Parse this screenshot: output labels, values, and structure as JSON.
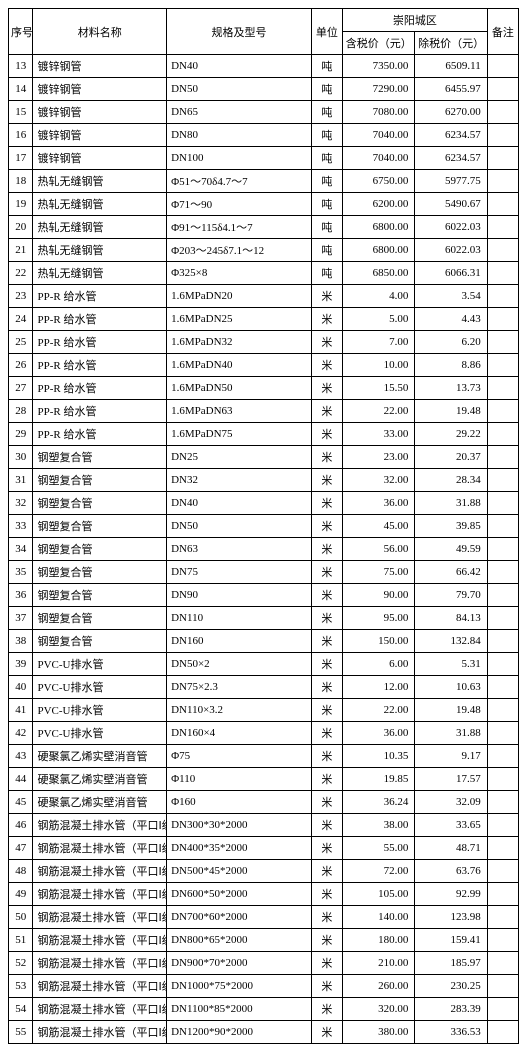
{
  "header": {
    "seq": "序号",
    "name": "材料名称",
    "spec": "规格及型号",
    "unit": "单位",
    "region": "崇阳城区",
    "price_incl": "含税价（元）",
    "price_excl": "除税价（元）",
    "remark": "备注"
  },
  "rows": [
    {
      "seq": "13",
      "name": "镀锌钢管",
      "spec": "DN40",
      "unit": "吨",
      "p1": "7350.00",
      "p2": "6509.11",
      "rm": ""
    },
    {
      "seq": "14",
      "name": "镀锌钢管",
      "spec": "DN50",
      "unit": "吨",
      "p1": "7290.00",
      "p2": "6455.97",
      "rm": ""
    },
    {
      "seq": "15",
      "name": "镀锌钢管",
      "spec": "DN65",
      "unit": "吨",
      "p1": "7080.00",
      "p2": "6270.00",
      "rm": ""
    },
    {
      "seq": "16",
      "name": "镀锌钢管",
      "spec": "DN80",
      "unit": "吨",
      "p1": "7040.00",
      "p2": "6234.57",
      "rm": ""
    },
    {
      "seq": "17",
      "name": "镀锌钢管",
      "spec": "DN100",
      "unit": "吨",
      "p1": "7040.00",
      "p2": "6234.57",
      "rm": ""
    },
    {
      "seq": "18",
      "name": "热轧无缝钢管",
      "spec": "Φ51～70δ4.7～7",
      "unit": "吨",
      "p1": "6750.00",
      "p2": "5977.75",
      "rm": ""
    },
    {
      "seq": "19",
      "name": "热轧无缝钢管",
      "spec": "Φ71～90",
      "unit": "吨",
      "p1": "6200.00",
      "p2": "5490.67",
      "rm": ""
    },
    {
      "seq": "20",
      "name": "热轧无缝钢管",
      "spec": "Φ91～115δ4.1～7",
      "unit": "吨",
      "p1": "6800.00",
      "p2": "6022.03",
      "rm": ""
    },
    {
      "seq": "21",
      "name": "热轧无缝钢管",
      "spec": "Φ203～245δ7.1～12",
      "unit": "吨",
      "p1": "6800.00",
      "p2": "6022.03",
      "rm": ""
    },
    {
      "seq": "22",
      "name": "热轧无缝钢管",
      "spec": "Φ325×8",
      "unit": "吨",
      "p1": "6850.00",
      "p2": "6066.31",
      "rm": ""
    },
    {
      "seq": "23",
      "name": "PP-R 给水管",
      "spec": "1.6MPaDN20",
      "unit": "米",
      "p1": "4.00",
      "p2": "3.54",
      "rm": ""
    },
    {
      "seq": "24",
      "name": "PP-R 给水管",
      "spec": "1.6MPaDN25",
      "unit": "米",
      "p1": "5.00",
      "p2": "4.43",
      "rm": ""
    },
    {
      "seq": "25",
      "name": "PP-R 给水管",
      "spec": "1.6MPaDN32",
      "unit": "米",
      "p1": "7.00",
      "p2": "6.20",
      "rm": ""
    },
    {
      "seq": "26",
      "name": "PP-R 给水管",
      "spec": "1.6MPaDN40",
      "unit": "米",
      "p1": "10.00",
      "p2": "8.86",
      "rm": ""
    },
    {
      "seq": "27",
      "name": "PP-R 给水管",
      "spec": "1.6MPaDN50",
      "unit": "米",
      "p1": "15.50",
      "p2": "13.73",
      "rm": ""
    },
    {
      "seq": "28",
      "name": "PP-R 给水管",
      "spec": "1.6MPaDN63",
      "unit": "米",
      "p1": "22.00",
      "p2": "19.48",
      "rm": ""
    },
    {
      "seq": "29",
      "name": "PP-R 给水管",
      "spec": "1.6MPaDN75",
      "unit": "米",
      "p1": "33.00",
      "p2": "29.22",
      "rm": ""
    },
    {
      "seq": "30",
      "name": "钢塑复合管",
      "spec": "DN25",
      "unit": "米",
      "p1": "23.00",
      "p2": "20.37",
      "rm": ""
    },
    {
      "seq": "31",
      "name": "钢塑复合管",
      "spec": "DN32",
      "unit": "米",
      "p1": "32.00",
      "p2": "28.34",
      "rm": ""
    },
    {
      "seq": "32",
      "name": "钢塑复合管",
      "spec": "DN40",
      "unit": "米",
      "p1": "36.00",
      "p2": "31.88",
      "rm": ""
    },
    {
      "seq": "33",
      "name": "钢塑复合管",
      "spec": "DN50",
      "unit": "米",
      "p1": "45.00",
      "p2": "39.85",
      "rm": ""
    },
    {
      "seq": "34",
      "name": "钢塑复合管",
      "spec": "DN63",
      "unit": "米",
      "p1": "56.00",
      "p2": "49.59",
      "rm": ""
    },
    {
      "seq": "35",
      "name": "钢塑复合管",
      "spec": "DN75",
      "unit": "米",
      "p1": "75.00",
      "p2": "66.42",
      "rm": ""
    },
    {
      "seq": "36",
      "name": "钢塑复合管",
      "spec": "DN90",
      "unit": "米",
      "p1": "90.00",
      "p2": "79.70",
      "rm": ""
    },
    {
      "seq": "37",
      "name": "钢塑复合管",
      "spec": "DN110",
      "unit": "米",
      "p1": "95.00",
      "p2": "84.13",
      "rm": ""
    },
    {
      "seq": "38",
      "name": "钢塑复合管",
      "spec": "DN160",
      "unit": "米",
      "p1": "150.00",
      "p2": "132.84",
      "rm": ""
    },
    {
      "seq": "39",
      "name": "PVC-U排水管",
      "spec": "DN50×2",
      "unit": "米",
      "p1": "6.00",
      "p2": "5.31",
      "rm": ""
    },
    {
      "seq": "40",
      "name": "PVC-U排水管",
      "spec": "DN75×2.3",
      "unit": "米",
      "p1": "12.00",
      "p2": "10.63",
      "rm": ""
    },
    {
      "seq": "41",
      "name": "PVC-U排水管",
      "spec": "DN110×3.2",
      "unit": "米",
      "p1": "22.00",
      "p2": "19.48",
      "rm": ""
    },
    {
      "seq": "42",
      "name": "PVC-U排水管",
      "spec": "DN160×4",
      "unit": "米",
      "p1": "36.00",
      "p2": "31.88",
      "rm": ""
    },
    {
      "seq": "43",
      "name": "硬聚氯乙烯实壁消音管",
      "spec": "Φ75",
      "unit": "米",
      "p1": "10.35",
      "p2": "9.17",
      "rm": ""
    },
    {
      "seq": "44",
      "name": "硬聚氯乙烯实壁消音管",
      "spec": "Φ110",
      "unit": "米",
      "p1": "19.85",
      "p2": "17.57",
      "rm": ""
    },
    {
      "seq": "45",
      "name": "硬聚氯乙烯实壁消音管",
      "spec": "Φ160",
      "unit": "米",
      "p1": "36.24",
      "p2": "32.09",
      "rm": ""
    },
    {
      "seq": "46",
      "name": "钢筋混凝土排水管（平口Ⅰ级）",
      "spec": "DN300*30*2000",
      "unit": "米",
      "p1": "38.00",
      "p2": "33.65",
      "rm": ""
    },
    {
      "seq": "47",
      "name": "钢筋混凝土排水管（平口Ⅰ级）",
      "spec": "DN400*35*2000",
      "unit": "米",
      "p1": "55.00",
      "p2": "48.71",
      "rm": ""
    },
    {
      "seq": "48",
      "name": "钢筋混凝土排水管（平口Ⅰ级）",
      "spec": "DN500*45*2000",
      "unit": "米",
      "p1": "72.00",
      "p2": "63.76",
      "rm": ""
    },
    {
      "seq": "49",
      "name": "钢筋混凝土排水管（平口Ⅰ级）",
      "spec": "DN600*50*2000",
      "unit": "米",
      "p1": "105.00",
      "p2": "92.99",
      "rm": ""
    },
    {
      "seq": "50",
      "name": "钢筋混凝土排水管（平口Ⅰ级）",
      "spec": "DN700*60*2000",
      "unit": "米",
      "p1": "140.00",
      "p2": "123.98",
      "rm": ""
    },
    {
      "seq": "51",
      "name": "钢筋混凝土排水管（平口Ⅰ级）",
      "spec": "DN800*65*2000",
      "unit": "米",
      "p1": "180.00",
      "p2": "159.41",
      "rm": ""
    },
    {
      "seq": "52",
      "name": "钢筋混凝土排水管（平口Ⅰ级）",
      "spec": "DN900*70*2000",
      "unit": "米",
      "p1": "210.00",
      "p2": "185.97",
      "rm": ""
    },
    {
      "seq": "53",
      "name": "钢筋混凝土排水管（平口Ⅰ级）",
      "spec": "DN1000*75*2000",
      "unit": "米",
      "p1": "260.00",
      "p2": "230.25",
      "rm": ""
    },
    {
      "seq": "54",
      "name": "钢筋混凝土排水管（平口Ⅰ级）",
      "spec": "DN1100*85*2000",
      "unit": "米",
      "p1": "320.00",
      "p2": "283.39",
      "rm": ""
    },
    {
      "seq": "55",
      "name": "钢筋混凝土排水管（平口Ⅰ级）",
      "spec": "DN1200*90*2000",
      "unit": "米",
      "p1": "380.00",
      "p2": "336.53",
      "rm": ""
    }
  ]
}
